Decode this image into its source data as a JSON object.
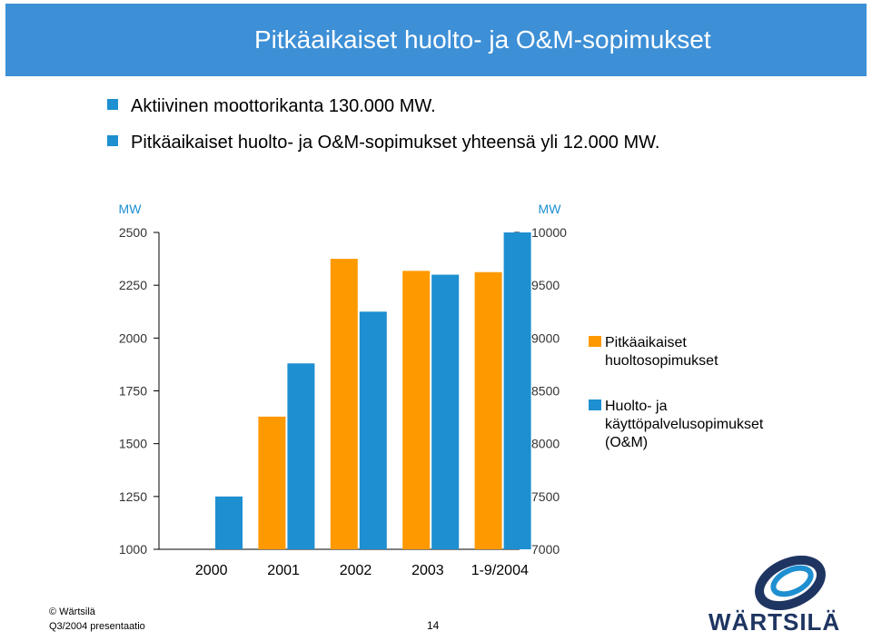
{
  "title": "Pitkäaikaiset huolto- ja O&M-sopimukset",
  "bullets": [
    "Aktiivinen moottorikanta 130.000 MW.",
    "Pitkäaikaiset huolto- ja O&M-sopimukset yhteensä yli 12.000 MW."
  ],
  "chart_data": {
    "type": "bar",
    "categories": [
      "2000",
      "2001",
      "2002",
      "2003",
      "1-9/2004"
    ],
    "series": [
      {
        "name": "Pitkäaikaiset huoltosopimukset",
        "color": "#ff9900",
        "axis": "left",
        "values": [
          null,
          1628,
          2375,
          2318,
          2312
        ]
      },
      {
        "name": "Huolto- ja käyttöpalvelusopimukset (O&M)",
        "color": "#1e8fd0",
        "axis": "right",
        "values": [
          7500,
          8760,
          9250,
          9600,
          10000
        ]
      }
    ],
    "left_axis": {
      "unit": "MW",
      "ylim": [
        1000,
        2500
      ],
      "ticks": [
        1000,
        1250,
        1500,
        1750,
        2000,
        2250,
        2500
      ]
    },
    "right_axis": {
      "unit": "MW",
      "ylim": [
        7000,
        10000
      ],
      "ticks": [
        7000,
        7500,
        8000,
        8500,
        9000,
        9500,
        10000
      ]
    },
    "legend": {
      "placement": "right"
    }
  },
  "footer": {
    "copyright": "© Wärtsilä",
    "presentation": "Q3/2004 presentaatio",
    "page": "14",
    "logo_text": "WÄRTSILÄ"
  }
}
